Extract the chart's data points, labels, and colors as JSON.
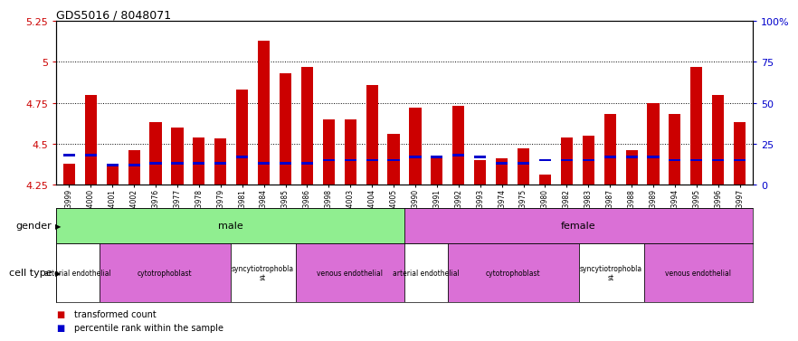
{
  "title": "GDS5016 / 8048071",
  "samples": [
    "GSM1083999",
    "GSM1084000",
    "GSM1084001",
    "GSM1084002",
    "GSM1083976",
    "GSM1083977",
    "GSM1083978",
    "GSM1083979",
    "GSM1083981",
    "GSM1083984",
    "GSM1083985",
    "GSM1083986",
    "GSM1083998",
    "GSM1084003",
    "GSM1084004",
    "GSM1084005",
    "GSM1083990",
    "GSM1083991",
    "GSM1083992",
    "GSM1083993",
    "GSM1083974",
    "GSM1083975",
    "GSM1083980",
    "GSM1083982",
    "GSM1083983",
    "GSM1083987",
    "GSM1083988",
    "GSM1083989",
    "GSM1083994",
    "GSM1083995",
    "GSM1083996",
    "GSM1083997"
  ],
  "red_values": [
    4.38,
    4.8,
    4.37,
    4.46,
    4.63,
    4.6,
    4.54,
    4.53,
    4.83,
    5.13,
    4.93,
    4.97,
    4.65,
    4.65,
    4.86,
    4.56,
    4.72,
    4.42,
    4.73,
    4.4,
    4.41,
    4.47,
    4.31,
    4.54,
    4.55,
    4.68,
    4.46,
    4.75,
    4.68,
    4.97,
    4.8,
    4.63
  ],
  "blue_values": [
    4.43,
    4.43,
    4.37,
    4.37,
    4.38,
    4.38,
    4.38,
    4.38,
    4.42,
    4.38,
    4.38,
    4.38,
    4.4,
    4.4,
    4.4,
    4.4,
    4.42,
    4.42,
    4.43,
    4.42,
    4.38,
    4.38,
    4.4,
    4.4,
    4.4,
    4.42,
    4.42,
    4.42,
    4.4,
    4.4,
    4.4,
    4.4
  ],
  "y_min": 4.25,
  "y_max": 5.25,
  "y_ticks": [
    4.25,
    4.5,
    4.75,
    5.0,
    5.25
  ],
  "y_tick_labels": [
    "4.25",
    "4.5",
    "4.75",
    "5",
    "5.25"
  ],
  "percentile_ticks_pct": [
    0,
    25,
    50,
    75,
    100
  ],
  "percentile_labels": [
    "0",
    "25",
    "50",
    "75",
    "100%"
  ],
  "bar_color": "#cc0000",
  "blue_color": "#0000cc",
  "gender_row": [
    {
      "label": "male",
      "start": 0,
      "end": 16,
      "color": "#90ee90"
    },
    {
      "label": "female",
      "start": 16,
      "end": 32,
      "color": "#da70d6"
    }
  ],
  "cell_type_row": [
    {
      "label": "arterial endothelial",
      "start": 0,
      "end": 2,
      "color": "#ffffff"
    },
    {
      "label": "cytotrophoblast",
      "start": 2,
      "end": 8,
      "color": "#da70d6"
    },
    {
      "label": "syncytiotrophoblast",
      "start": 8,
      "end": 11,
      "color": "#ffffff"
    },
    {
      "label": "venous endothelial",
      "start": 11,
      "end": 16,
      "color": "#da70d6"
    },
    {
      "label": "arterial endothelial",
      "start": 16,
      "end": 18,
      "color": "#ffffff"
    },
    {
      "label": "cytotrophoblast",
      "start": 18,
      "end": 24,
      "color": "#da70d6"
    },
    {
      "label": "syncytiotrophoblast",
      "start": 24,
      "end": 27,
      "color": "#ffffff"
    },
    {
      "label": "venous endothelial",
      "start": 27,
      "end": 32,
      "color": "#da70d6"
    }
  ],
  "legend_transformed": "transformed count",
  "legend_percentile": "percentile rank within the sample",
  "bar_width": 0.55
}
